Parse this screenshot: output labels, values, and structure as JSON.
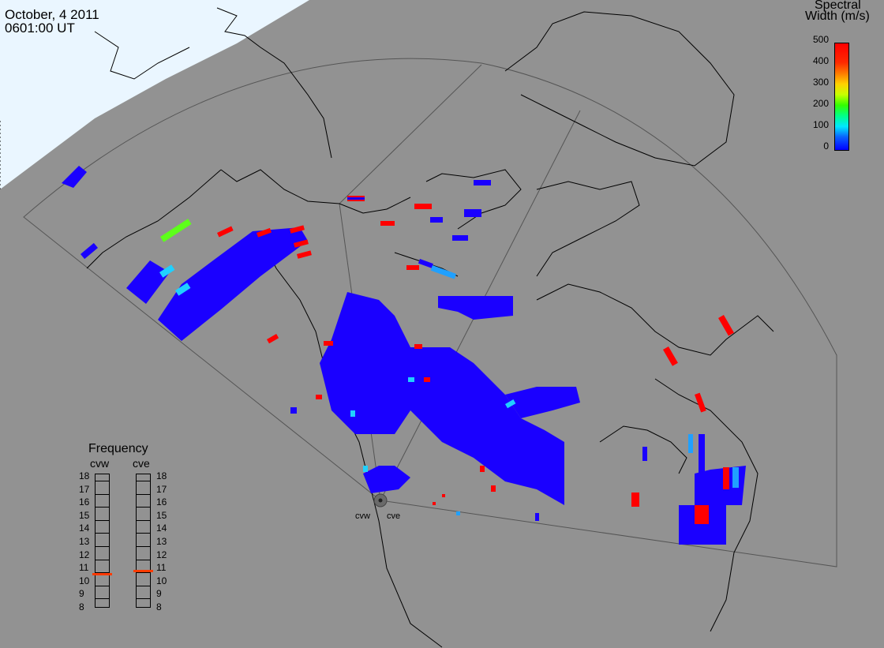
{
  "header": {
    "date": "October, 4 2011",
    "time": "0601:00 UT"
  },
  "colorbar": {
    "title_line1": "Spectral",
    "title_line2": "Width (m/s)",
    "ticks": [
      "500",
      "400",
      "300",
      "200",
      "100",
      "0"
    ],
    "range": [
      0,
      500
    ],
    "colors": [
      "#0000ff",
      "#00e8ff",
      "#33ff00",
      "#ffd000",
      "#ff0000"
    ]
  },
  "frequency_panel": {
    "title": "Frequency",
    "radars": [
      {
        "name": "cvw",
        "frequency": 10.7
      },
      {
        "name": "cve",
        "frequency": 10.8
      }
    ],
    "scale": [
      "18",
      "17",
      "16",
      "15",
      "14",
      "13",
      "12",
      "11",
      "10",
      "9",
      "8"
    ],
    "marker_color": "#ff3b00"
  },
  "radar_sites": [
    "cvw",
    "cve"
  ],
  "map": {
    "background": "#929292",
    "daylight_color": "#eaf6ff",
    "coast_color": "#000000",
    "fov_color": "#555555"
  }
}
